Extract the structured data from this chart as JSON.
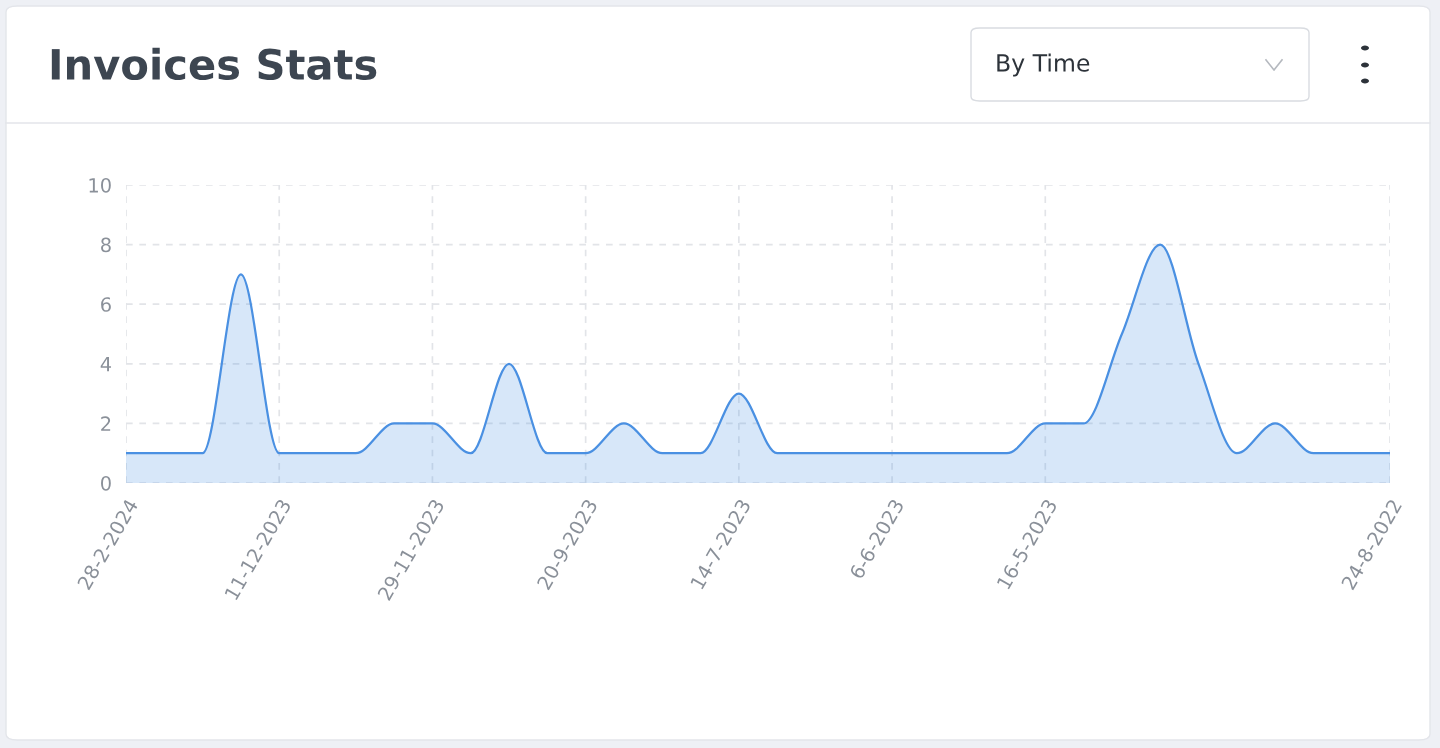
{
  "chart_data": {
    "type": "area",
    "title": "Invoices Stats",
    "annotations": [
      "By Time"
    ],
    "categories": [
      "28-2-2024",
      null,
      null,
      null,
      "11-12-2023",
      null,
      null,
      null,
      "29-11-2023",
      null,
      null,
      null,
      "20-9-2023",
      null,
      null,
      null,
      "14-7-2023",
      null,
      null,
      null,
      "6-6-2023",
      null,
      null,
      null,
      "16-5-2023",
      null,
      null,
      null,
      null,
      null,
      null,
      null,
      null,
      "24-8-2022"
    ],
    "series": [
      {
        "color": "#4a90e2",
        "values": [
          1,
          1,
          1,
          7,
          1,
          1,
          1,
          2,
          2,
          1,
          4,
          1,
          1,
          2,
          1,
          1,
          3,
          1,
          1,
          1,
          1,
          1,
          1,
          1,
          2,
          2,
          5,
          8,
          4,
          1,
          2,
          1,
          1,
          1
        ]
      }
    ],
    "ylim": [
      0,
      10
    ],
    "yticks": [
      0,
      2,
      4,
      6,
      8,
      10
    ],
    "grid": true,
    "marker": "none",
    "line_style": "solid",
    "legend": false
  }
}
